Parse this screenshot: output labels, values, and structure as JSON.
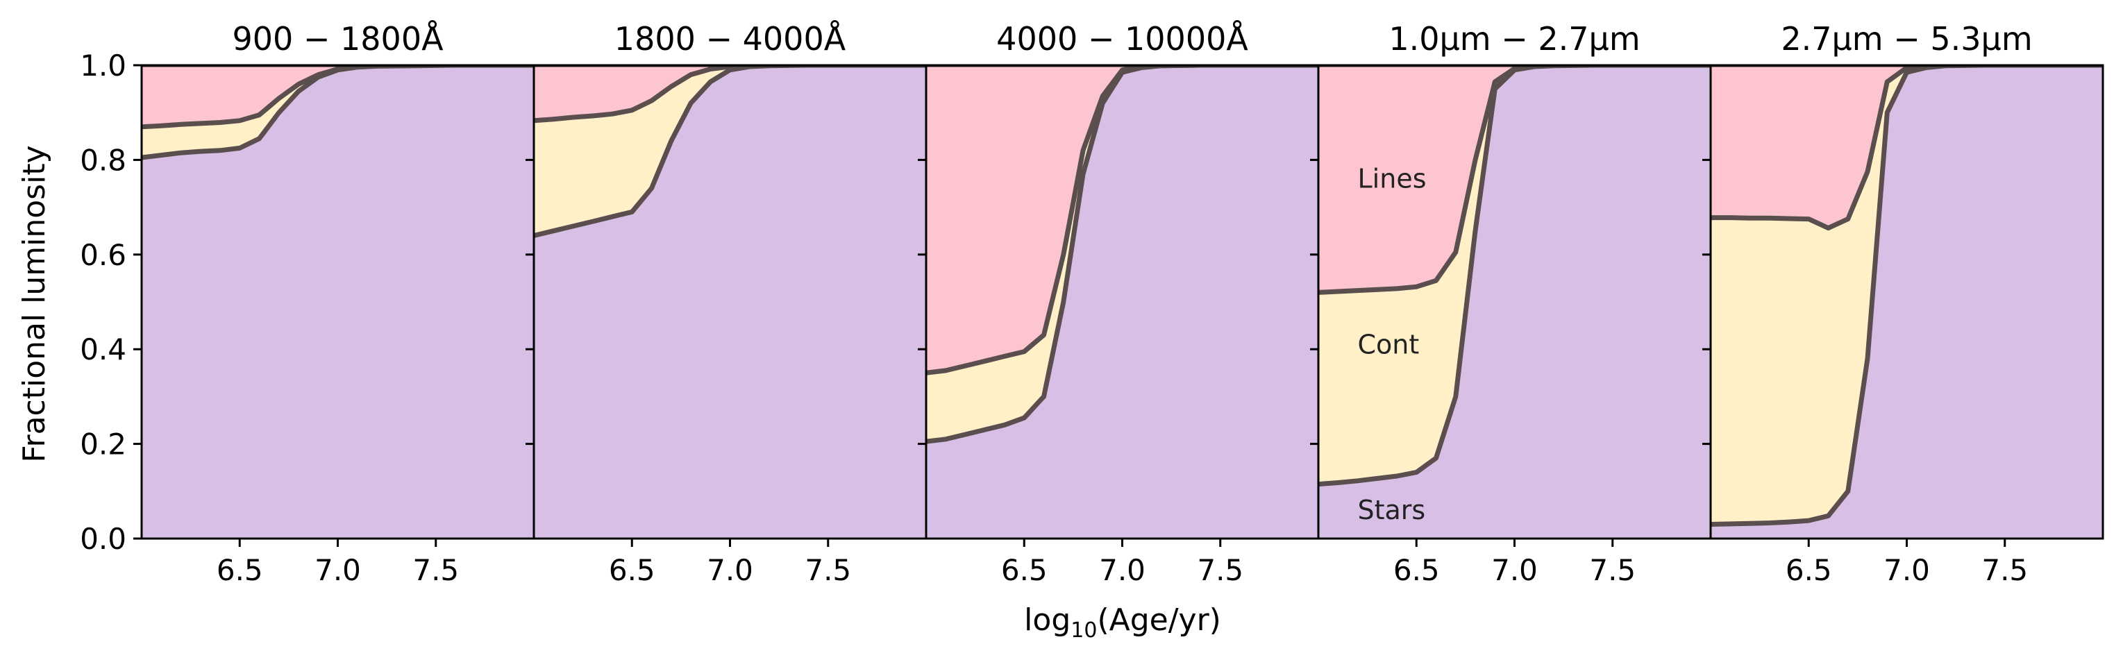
{
  "chart_data": {
    "type": "area",
    "ylabel": "Fractional luminosity",
    "xlabel_main": "log",
    "xlabel_sub": "10",
    "xlabel_rest": "(Age/yr)",
    "xlim": [
      6.0,
      8.0
    ],
    "ylim": [
      0.0,
      1.0
    ],
    "xticks": [
      6.5,
      7.0,
      7.5
    ],
    "xtick_labels": [
      "6.5",
      "7.0",
      "7.5"
    ],
    "yticks": [
      0.0,
      0.2,
      0.4,
      0.6,
      0.8,
      1.0
    ],
    "ytick_labels": [
      "0.0",
      "0.2",
      "0.4",
      "0.6",
      "0.8",
      "1.0"
    ],
    "colors": {
      "stars": "#d8bfe6",
      "cont": "#fff0c8",
      "lines": "#fdc5d0",
      "edge": "#5a4e4e"
    },
    "x": [
      6.0,
      6.1,
      6.2,
      6.3,
      6.4,
      6.5,
      6.6,
      6.7,
      6.8,
      6.9,
      7.0,
      7.1,
      7.2,
      7.4,
      7.6,
      8.0
    ],
    "panels": [
      {
        "title": "900 − 1800Å",
        "stars": [
          0.805,
          0.81,
          0.815,
          0.818,
          0.82,
          0.825,
          0.845,
          0.9,
          0.945,
          0.975,
          0.99,
          0.996,
          0.998,
          0.999,
          1.0,
          1.0
        ],
        "stars_plus_cont": [
          0.87,
          0.872,
          0.875,
          0.877,
          0.879,
          0.883,
          0.895,
          0.93,
          0.96,
          0.98,
          0.992,
          0.997,
          0.999,
          1.0,
          1.0,
          1.0
        ],
        "annotations": []
      },
      {
        "title": "1800 − 4000Å",
        "stars": [
          0.64,
          0.65,
          0.66,
          0.67,
          0.68,
          0.69,
          0.74,
          0.84,
          0.92,
          0.965,
          0.99,
          0.997,
          0.999,
          1.0,
          1.0,
          1.0
        ],
        "stars_plus_cont": [
          0.883,
          0.886,
          0.89,
          0.893,
          0.897,
          0.905,
          0.925,
          0.955,
          0.98,
          0.992,
          0.997,
          0.999,
          1.0,
          1.0,
          1.0,
          1.0
        ],
        "annotations": []
      },
      {
        "title": "4000 − 10000Å",
        "stars": [
          0.205,
          0.21,
          0.22,
          0.23,
          0.24,
          0.255,
          0.3,
          0.5,
          0.77,
          0.92,
          0.985,
          0.995,
          0.999,
          1.0,
          1.0,
          1.0
        ],
        "stars_plus_cont": [
          0.35,
          0.355,
          0.365,
          0.375,
          0.385,
          0.395,
          0.43,
          0.6,
          0.82,
          0.935,
          0.99,
          0.997,
          0.999,
          1.0,
          1.0,
          1.0
        ],
        "annotations": []
      },
      {
        "title": "1.0μm − 2.7μm",
        "stars": [
          0.115,
          0.118,
          0.122,
          0.127,
          0.132,
          0.14,
          0.17,
          0.3,
          0.65,
          0.95,
          0.99,
          0.997,
          0.999,
          1.0,
          1.0,
          1.0
        ],
        "stars_plus_cont": [
          0.52,
          0.522,
          0.524,
          0.526,
          0.528,
          0.532,
          0.545,
          0.605,
          0.8,
          0.965,
          0.993,
          0.998,
          1.0,
          1.0,
          1.0,
          1.0
        ],
        "annotations": [
          {
            "text": "Lines",
            "x": 6.2,
            "y": 0.76
          },
          {
            "text": "Cont",
            "x": 6.2,
            "y": 0.41
          },
          {
            "text": "Stars",
            "x": 6.2,
            "y": 0.06
          }
        ]
      },
      {
        "title": "2.7μm − 5.3μm",
        "stars": [
          0.03,
          0.031,
          0.032,
          0.033,
          0.035,
          0.038,
          0.048,
          0.1,
          0.38,
          0.9,
          0.985,
          0.995,
          0.999,
          1.0,
          1.0,
          1.0
        ],
        "stars_plus_cont": [
          0.678,
          0.678,
          0.677,
          0.677,
          0.676,
          0.675,
          0.656,
          0.675,
          0.775,
          0.965,
          0.995,
          0.999,
          1.0,
          1.0,
          1.0,
          1.0
        ],
        "annotations": []
      }
    ]
  }
}
